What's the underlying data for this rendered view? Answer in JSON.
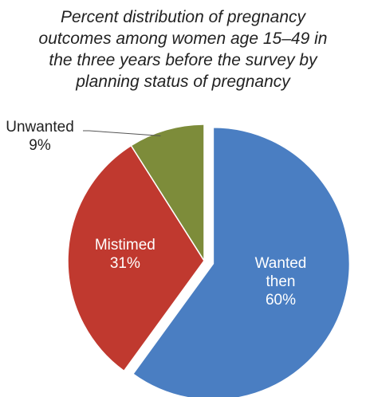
{
  "chart_data": {
    "type": "pie",
    "title": "Percent distribution of pregnancy outcomes among women age 15–49 in the three years before the survey by planning status of pregnancy",
    "title_lines": [
      "Percent distribution of pregnancy",
      "outcomes among women age 15–49 in",
      "the three years before the survey by",
      "planning status of pregnancy"
    ],
    "slices": [
      {
        "label": "Wanted then",
        "label_lines": [
          "Wanted",
          "then"
        ],
        "value": 60,
        "value_label": "60%",
        "color": "#4a7ec2",
        "text_color": "#ffffff",
        "exploded": true,
        "callout": false
      },
      {
        "label": "Mistimed",
        "label_lines": [
          "Mistimed"
        ],
        "value": 31,
        "value_label": "31%",
        "color": "#c0392f",
        "text_color": "#ffffff",
        "exploded": false,
        "callout": false
      },
      {
        "label": "Unwanted",
        "label_lines": [
          "Unwanted"
        ],
        "value": 9,
        "value_label": "9%",
        "color": "#7d8c3a",
        "text_color": "#222222",
        "exploded": false,
        "callout": true
      }
    ],
    "start_angle_deg": 0,
    "direction": "clockwise"
  }
}
